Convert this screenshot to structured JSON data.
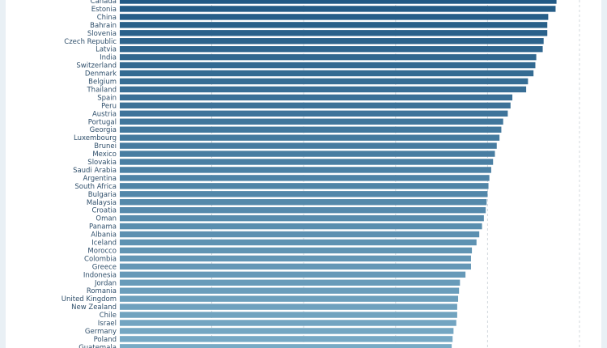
{
  "chart_data": {
    "type": "bar",
    "orientation": "horizontal",
    "title": "",
    "xlabel": "",
    "ylabel": "",
    "grid": true,
    "gridline_values": [
      10,
      20,
      30,
      40,
      50
    ],
    "xlim": [
      0,
      55
    ],
    "categories": [
      "Canada",
      "Estonia",
      "China",
      "Bahrain",
      "Slovenia",
      "Czech Republic",
      "Latvia",
      "India",
      "Switzerland",
      "Denmark",
      "Belgium",
      "Thailand",
      "Spain",
      "Peru",
      "Austria",
      "Portugal",
      "Georgia",
      "Luxembourg",
      "Brunei",
      "Mexico",
      "Slovakia",
      "Saudi Arabia",
      "Argentina",
      "South Africa",
      "Bulgaria",
      "Malaysia",
      "Croatia",
      "Oman",
      "Panama",
      "Albania",
      "Iceland",
      "Morocco",
      "Colombia",
      "Greece",
      "Indonesia",
      "Jordan",
      "Romania",
      "United Kingdom",
      "New Zealand",
      "Chile",
      "Israel",
      "Germany",
      "Poland",
      "Guatemala"
    ],
    "values": [
      47.5,
      47.4,
      46.6,
      46.5,
      46.5,
      46.1,
      46.0,
      45.3,
      45.2,
      45.0,
      44.4,
      44.2,
      42.7,
      42.5,
      42.2,
      41.7,
      41.5,
      41.3,
      41.0,
      40.8,
      40.6,
      40.4,
      40.2,
      40.1,
      40.0,
      39.9,
      39.8,
      39.6,
      39.4,
      39.1,
      38.8,
      38.3,
      38.2,
      38.2,
      37.6,
      37.0,
      36.9,
      36.8,
      36.7,
      36.7,
      36.6,
      36.3,
      36.2,
      36.1
    ],
    "colors": {
      "bar_top": "#225a85",
      "bar_bottom": "#78aac5",
      "label": "#2f4f6b",
      "grid": "#d3d9de"
    }
  }
}
